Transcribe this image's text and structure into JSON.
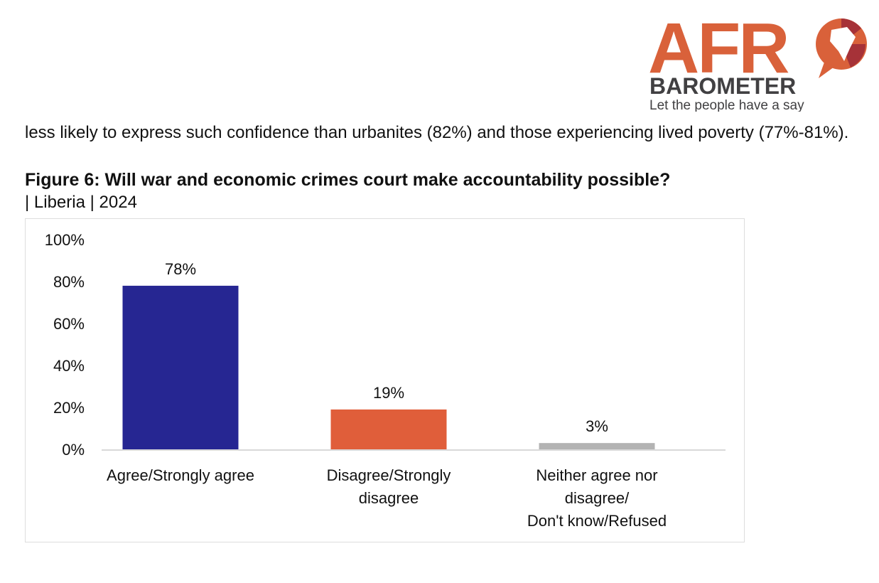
{
  "logo": {
    "text_top": "AFRO",
    "text_mid": "BAROMETER",
    "tagline": "Let the people have a say",
    "colors": {
      "orange": "#D9613A",
      "red": "#A63238",
      "gray": "#414042"
    }
  },
  "paragraph": "less likely to express such confidence than urbanites (82%) and those experiencing lived poverty (77%-81%).",
  "figure": {
    "title": "Figure 6: Will war and economic crimes court make accountability possible?",
    "subtitle": "| Liberia | 2024"
  },
  "chart_data": {
    "type": "bar",
    "categories": [
      [
        "Agree/Strongly agree"
      ],
      [
        "Disagree/Strongly",
        "disagree"
      ],
      [
        "Neither agree nor",
        "disagree/",
        "Don't know/Refused"
      ]
    ],
    "values": [
      78,
      19,
      3
    ],
    "data_labels": [
      "78%",
      "19%",
      "3%"
    ],
    "colors": [
      "#262692",
      "#E05E3A",
      "#B3B3B3"
    ],
    "ylim": [
      0,
      100
    ],
    "yticks": [
      "0%",
      "20%",
      "40%",
      "60%",
      "80%",
      "100%"
    ],
    "grid": false
  }
}
